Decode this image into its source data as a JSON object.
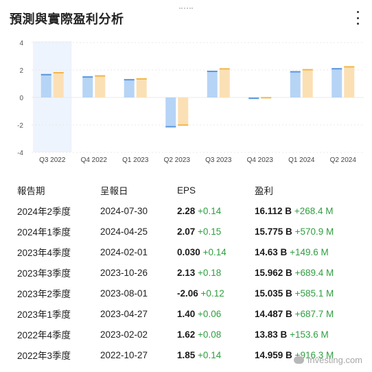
{
  "widget": {
    "title": "預測與實際盈利分析"
  },
  "chart_data": {
    "type": "bar",
    "categories": [
      "Q3 2022",
      "Q4 2022",
      "Q1 2023",
      "Q2 2023",
      "Q3 2023",
      "Q4 2023",
      "Q1 2024",
      "Q2 2024"
    ],
    "series": [
      {
        "values": [
          1.71,
          1.54,
          1.34,
          -2.18,
          1.95,
          -0.11,
          1.92,
          2.14
        ]
      },
      {
        "values": [
          1.85,
          1.62,
          1.4,
          -2.06,
          2.13,
          0.03,
          2.07,
          2.28
        ]
      }
    ],
    "ylim": [
      -4,
      4
    ],
    "yticks": [
      "4",
      "2",
      "0",
      "-2",
      "-4"
    ],
    "highlighted_category": "Q3 2022",
    "colors": {
      "estimate": "#b6d4f5",
      "estimate_edge": "#5a97de",
      "actual": "#fbe0b5",
      "actual_edge": "#f2b648",
      "highlight": "#eef4fd",
      "grid": "#e8e8e8",
      "positive": "#2e9e3f"
    }
  },
  "table": {
    "headers": [
      "報告期",
      "呈報日",
      "EPS",
      "盈利"
    ],
    "rows": [
      {
        "period": "2024年2季度",
        "date": "2024-07-30",
        "eps": "2.28",
        "eps_diff": "+0.14",
        "rev": "16.112 B",
        "rev_diff": "+268.4 M"
      },
      {
        "period": "2024年1季度",
        "date": "2024-04-25",
        "eps": "2.07",
        "eps_diff": "+0.15",
        "rev": "15.775 B",
        "rev_diff": "+570.9 M"
      },
      {
        "period": "2023年4季度",
        "date": "2024-02-01",
        "eps": "0.030",
        "eps_diff": "+0.14",
        "rev": "14.63 B",
        "rev_diff": "+149.6 M"
      },
      {
        "period": "2023年3季度",
        "date": "2023-10-26",
        "eps": "2.13",
        "eps_diff": "+0.18",
        "rev": "15.962 B",
        "rev_diff": "+689.4 M"
      },
      {
        "period": "2023年2季度",
        "date": "2023-08-01",
        "eps": "-2.06",
        "eps_diff": "+0.12",
        "rev": "15.035 B",
        "rev_diff": "+585.1 M"
      },
      {
        "period": "2023年1季度",
        "date": "2023-04-27",
        "eps": "1.40",
        "eps_diff": "+0.06",
        "rev": "14.487 B",
        "rev_diff": "+687.7 M"
      },
      {
        "period": "2022年4季度",
        "date": "2023-02-02",
        "eps": "1.62",
        "eps_diff": "+0.08",
        "rev": "13.83 B",
        "rev_diff": "+153.6 M"
      },
      {
        "period": "2022年3季度",
        "date": "2022-10-27",
        "eps": "1.85",
        "eps_diff": "+0.14",
        "rev": "14.959 B",
        "rev_diff": "+916.3 M"
      }
    ]
  },
  "watermark": {
    "text": "Investing.com"
  }
}
